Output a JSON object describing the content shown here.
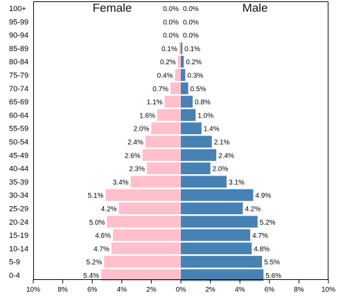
{
  "chart_data": {
    "type": "bar",
    "orientation": "horizontal",
    "layout": "population-pyramid",
    "categories": [
      "100+",
      "95-99",
      "90-94",
      "85-89",
      "80-84",
      "75-79",
      "70-74",
      "65-69",
      "60-64",
      "55-59",
      "50-54",
      "45-49",
      "40-44",
      "35-39",
      "30-34",
      "25-29",
      "20-24",
      "15-19",
      "10-14",
      "5-9",
      "0-4"
    ],
    "series": [
      {
        "name": "Female",
        "color": "#ffc0cb",
        "values": [
          0.0,
          0.0,
          0.0,
          0.1,
          0.2,
          0.4,
          0.7,
          1.1,
          1.6,
          2.0,
          2.4,
          2.6,
          2.3,
          3.4,
          5.1,
          4.2,
          5.0,
          4.6,
          4.7,
          5.2,
          5.4
        ],
        "labels": [
          "0.0%",
          "0.0%",
          "0.0%",
          "0.1%",
          "0.2%",
          "0.4%",
          "0.7%",
          "1.1%",
          "1.6%",
          "2.0%",
          "2.4%",
          "2.6%",
          "2.3%",
          "3.4%",
          "5.1%",
          "4.2%",
          "5.0%",
          "4.6%",
          "4.7%",
          "5.2%",
          "5.4%"
        ]
      },
      {
        "name": "Male",
        "color": "#4682b4",
        "values": [
          0.0,
          0.0,
          0.0,
          0.1,
          0.2,
          0.3,
          0.5,
          0.8,
          1.0,
          1.4,
          2.1,
          2.4,
          2.0,
          3.1,
          4.9,
          4.2,
          5.2,
          4.7,
          4.8,
          5.5,
          5.6
        ],
        "labels": [
          "0.0%",
          "0.0%",
          "0.0%",
          "0.1%",
          "0.2%",
          "0.3%",
          "0.5%",
          "0.8%",
          "1.0%",
          "1.4%",
          "2.1%",
          "2.4%",
          "2.0%",
          "3.1%",
          "4.9%",
          "4.2%",
          "5.2%",
          "4.7%",
          "4.8%",
          "5.5%",
          "5.6%"
        ]
      }
    ],
    "xticks": [
      -10,
      -8,
      -6,
      -4,
      -2,
      0,
      2,
      4,
      6,
      8,
      10
    ],
    "xtick_labels": [
      "10%",
      "8%",
      "6%",
      "4%",
      "2%",
      "0%",
      "2%",
      "4%",
      "6%",
      "8%",
      "10%"
    ],
    "xlim": [
      -10,
      10
    ],
    "grid": false,
    "legend": "none"
  }
}
